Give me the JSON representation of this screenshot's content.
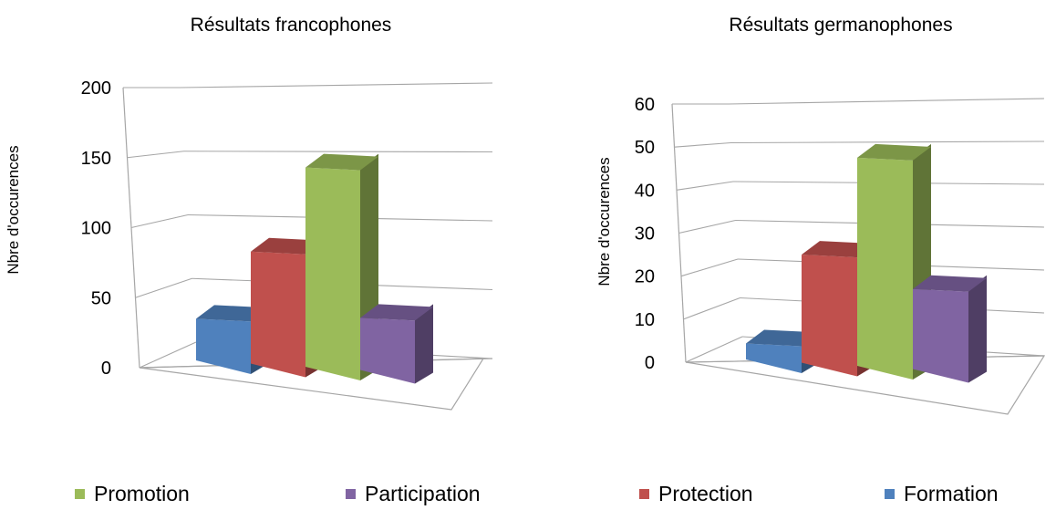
{
  "colors": {
    "Formation": "#4F81BD",
    "Protection": "#C0504D",
    "Promotion": "#9BBB59",
    "Participation": "#8064A2",
    "grid": "#A6A6A6"
  },
  "legend": {
    "items": [
      "Promotion",
      "Participation",
      "Protection",
      "Formation"
    ]
  },
  "chart_data": [
    {
      "type": "bar",
      "title": "Résultats francophones",
      "ylabel": "Nbre d'occurences",
      "xlabel": "",
      "ylim": [
        0,
        200
      ],
      "yticks": [
        0,
        50,
        100,
        150,
        200
      ],
      "categories": [
        "Formation",
        "Protection",
        "Promotion",
        "Participation"
      ],
      "values": [
        32,
        86,
        153,
        40
      ]
    },
    {
      "type": "bar",
      "title": "Résultats germanophones",
      "ylabel": "Nbre d'occurences",
      "xlabel": "",
      "ylim": [
        0,
        60
      ],
      "yticks": [
        0,
        10,
        20,
        30,
        40,
        50,
        60
      ],
      "categories": [
        "Formation",
        "Protection",
        "Promotion",
        "Participation"
      ],
      "values": [
        4,
        27,
        52,
        20
      ]
    }
  ]
}
